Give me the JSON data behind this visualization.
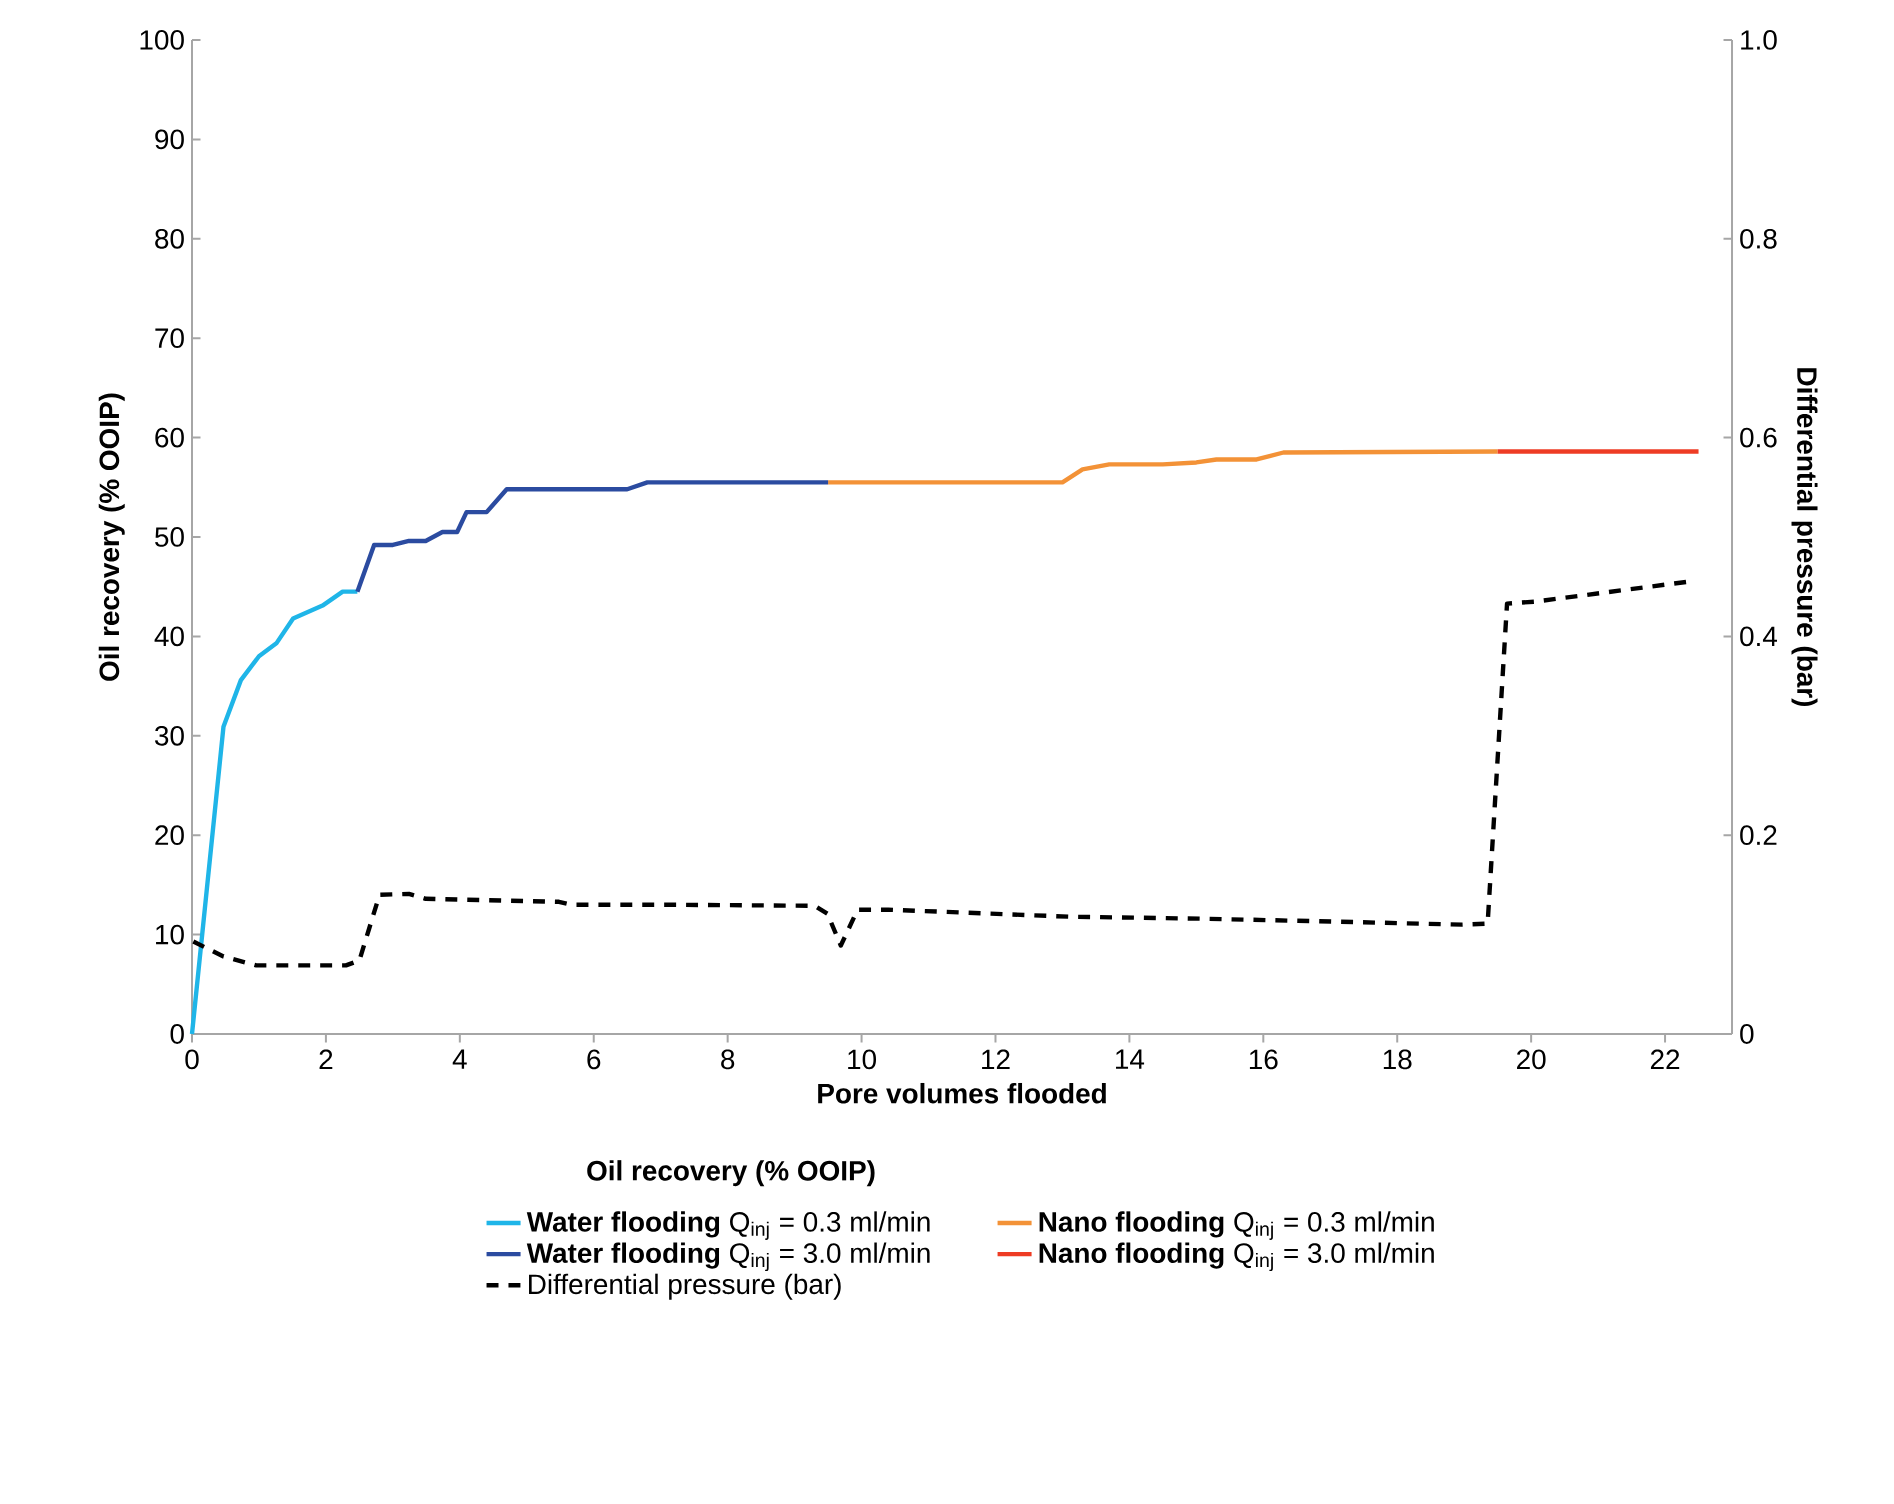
{
  "chart_data": {
    "type": "line",
    "xlabel": "Pore volumes flooded",
    "ylabel": "Oil recovery (% OOIP)",
    "y2label": "Differential pressure (bar)",
    "legend_title": "Oil recovery (% OOIP)",
    "xlim": [
      0,
      23
    ],
    "xticks": [
      0,
      2,
      4,
      6,
      8,
      10,
      12,
      14,
      16,
      18,
      20,
      22
    ],
    "ylim": [
      0,
      100
    ],
    "yticks": [
      0,
      10,
      20,
      30,
      40,
      50,
      60,
      70,
      80,
      90,
      100
    ],
    "y2lim": [
      0,
      1
    ],
    "y2ticks": [
      0,
      0.2,
      0.4,
      0.6,
      0.8,
      {
        "value": 1,
        "label": "1.0"
      }
    ],
    "legend": "bottom",
    "line_style": "solid",
    "series": [
      {
        "name": "**Water flooding** Q$_{inj}$ = 0.3 ml/min",
        "color": "#1fb5e8",
        "x": [
          0,
          0.47,
          0.73,
          1.0,
          1.26,
          1.51,
          1.95,
          2.25,
          2.47
        ],
        "values": [
          0,
          30.9,
          35.6,
          38.0,
          39.3,
          41.8,
          43.1,
          44.5,
          44.5
        ]
      },
      {
        "name": "**Nano flooding** Q$_{inj}$ = 0.3 ml/min",
        "color": "#f39237",
        "x": [
          9.5,
          13.0,
          13.3,
          13.7,
          14.5,
          15.0,
          15.3,
          15.9,
          16.3,
          19.5
        ],
        "values": [
          55.5,
          55.5,
          56.8,
          57.3,
          57.3,
          57.5,
          57.8,
          57.8,
          58.5,
          58.6
        ]
      },
      {
        "name": "**Water flooding** Q$_{inj}$ = 3.0 ml/min",
        "color": "#2b4ba0",
        "x": [
          2.47,
          2.72,
          3.0,
          3.24,
          3.49,
          3.74,
          3.96,
          4.1,
          4.4,
          4.7,
          6.5,
          6.8,
          9.5
        ],
        "values": [
          44.5,
          49.2,
          49.2,
          49.6,
          49.6,
          50.5,
          50.5,
          52.5,
          52.5,
          54.8,
          54.8,
          55.5,
          55.5
        ]
      },
      {
        "name": "**Nano flooding** Q$_{inj}$ = 3.0 ml/min",
        "color": "#ee3c24",
        "x": [
          19.5,
          22.5
        ],
        "values": [
          58.6,
          58.6
        ]
      },
      {
        "name": "Differential pressure (bar)",
        "color": "#000000",
        "axis": "y2",
        "line_style": "dashed",
        "x": [
          0.02,
          0.47,
          0.96,
          2.3,
          2.5,
          2.8,
          3.24,
          3.49,
          5.48,
          5.67,
          7.16,
          9.3,
          9.49,
          9.69,
          9.94,
          10.4,
          11.2,
          13.1,
          15.1,
          17.1,
          18.97,
          19.35,
          19.64,
          20.06,
          22.34
        ],
        "values": [
          0.093,
          0.078,
          0.069,
          0.069,
          0.074,
          0.14,
          0.141,
          0.136,
          0.133,
          0.13,
          0.13,
          0.129,
          0.121,
          0.089,
          0.125,
          0.125,
          0.123,
          0.118,
          0.116,
          0.113,
          0.11,
          0.111,
          0.433,
          0.435,
          0.455
        ]
      }
    ]
  }
}
